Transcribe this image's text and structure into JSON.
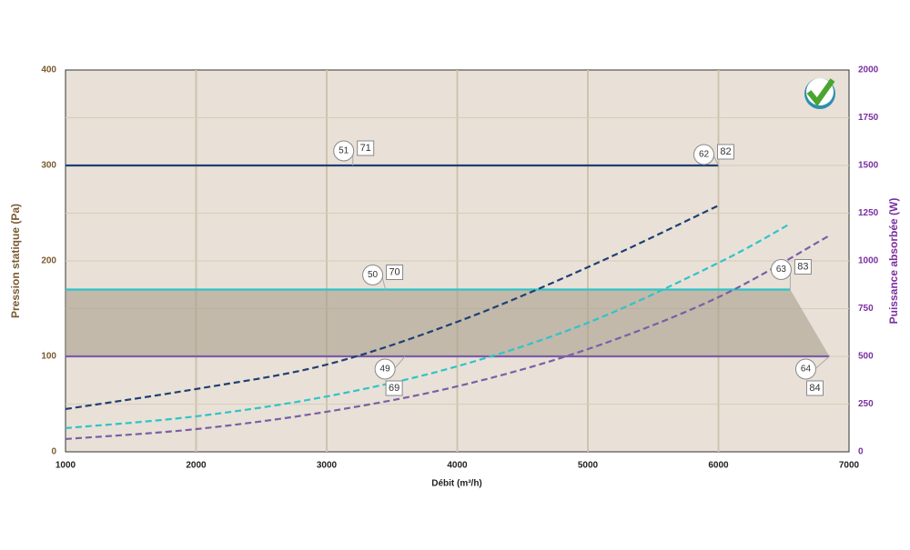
{
  "chart_data": {
    "type": "line",
    "x_label": "Débit (m³/h)",
    "y_label": "Pression statique (Pa)",
    "y2_label": "Puissance absorbée (W)",
    "xlim": [
      1000,
      7000
    ],
    "xticks": [
      1000,
      2000,
      3000,
      4000,
      5000,
      6000,
      7000
    ],
    "ylim": [
      0,
      400
    ],
    "yticks": [
      0,
      100,
      200,
      300,
      400
    ],
    "y2lim": [
      0,
      2000
    ],
    "y2ticks": [
      0,
      250,
      500,
      750,
      1000,
      1250,
      1500,
      1750,
      2000
    ],
    "grid": true,
    "series": [
      {
        "color": "#1f3f74",
        "x": [
          1000,
          6000
        ],
        "values": [
          300,
          300
        ]
      },
      {
        "color": "#2ec4c8",
        "x": [
          1000,
          6550
        ],
        "values": [
          170,
          170
        ]
      },
      {
        "color": "#7b5ea7",
        "x": [
          1000,
          6850
        ],
        "values": [
          100,
          100
        ]
      },
      {
        "color": "#1f3f74",
        "axis": "y2",
        "dashed": true,
        "x": [
          1000,
          2000,
          3000,
          4000,
          5000,
          6000
        ],
        "values": [
          224,
          329,
          457,
          681,
          967,
          1290
        ]
      },
      {
        "color": "#2ec4c8",
        "axis": "y2",
        "dashed": true,
        "x": [
          1000,
          2000,
          3000,
          4000,
          5000,
          6000,
          6550
        ],
        "values": [
          124,
          186,
          290,
          448,
          676,
          990,
          1195
        ]
      },
      {
        "color": "#7b5ea7",
        "axis": "y2",
        "dashed": true,
        "x": [
          1000,
          2000,
          3000,
          4000,
          5000,
          6000,
          6850
        ],
        "values": [
          67,
          119,
          210,
          343,
          538,
          810,
          1133
        ]
      }
    ],
    "annotations": [
      {
        "circle": "51",
        "box": "71",
        "x": 3200,
        "y": 300
      },
      {
        "circle": "62",
        "box": "82",
        "x": 6000,
        "y": 300
      },
      {
        "circle": "50",
        "box": "70",
        "x": 3450,
        "y": 170
      },
      {
        "circle": "63",
        "box": "83",
        "x": 6550,
        "y": 170
      },
      {
        "circle": "49",
        "box": "69",
        "x": 3600,
        "y": 100
      },
      {
        "circle": "64",
        "box": "84",
        "x": 6850,
        "y": 100
      }
    ]
  }
}
